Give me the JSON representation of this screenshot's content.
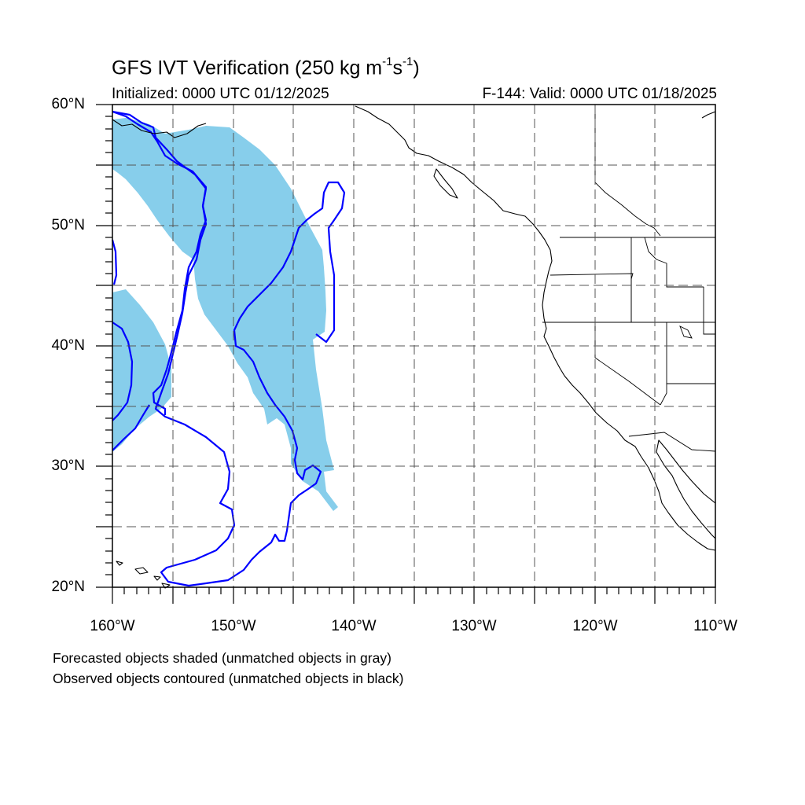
{
  "title": {
    "main": "GFS IVT Verification (250 kg m",
    "exp1": "-1",
    "mid": "s",
    "exp2": "-1",
    "end": ")"
  },
  "subtitle": {
    "initialized": "Initialized: 0000 UTC 01/12/2025",
    "valid": "F-144: Valid: 0000 UTC 01/18/2025"
  },
  "axes": {
    "lat_labels": [
      "60°N",
      "50°N",
      "40°N",
      "30°N",
      "20°N"
    ],
    "lon_labels": [
      "160°W",
      "150°W",
      "140°W",
      "130°W",
      "120°W",
      "110°W"
    ],
    "lat_range": [
      20,
      60
    ],
    "lon_range": [
      -160,
      -110
    ],
    "grid": "dashed every 5 degrees"
  },
  "legend": {
    "line1": "Forecasted objects shaded (unmatched objects in gray)",
    "line2": "Observed objects contoured (unmatched objects in black)"
  },
  "colors": {
    "forecast_fill": "#87ceeb",
    "observed_contour": "#0000ff",
    "coastline": "#000000",
    "grid": "#555555"
  }
}
